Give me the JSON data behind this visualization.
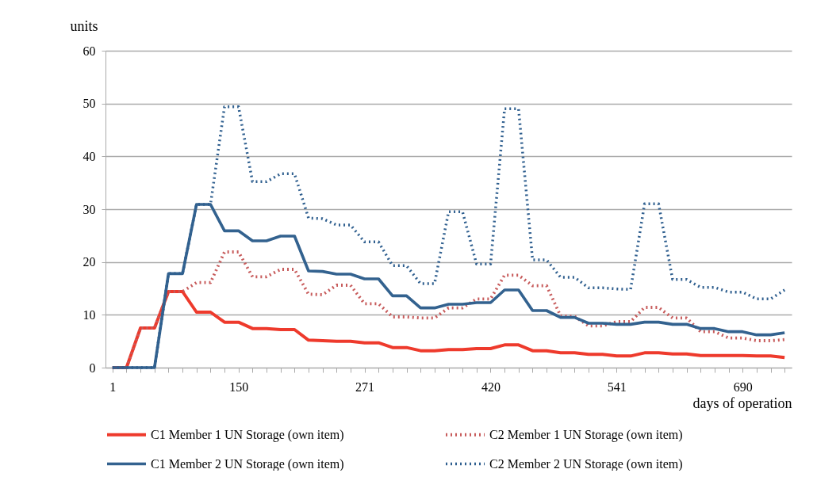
{
  "chart_data": {
    "type": "line",
    "xlabel": "days of operation",
    "ylabel": "units",
    "categories": [
      "1",
      null,
      null,
      null,
      null,
      null,
      null,
      null,
      null,
      "150",
      null,
      null,
      null,
      null,
      null,
      null,
      null,
      null,
      "271",
      null,
      null,
      null,
      null,
      null,
      null,
      null,
      null,
      "420",
      null,
      null,
      null,
      null,
      null,
      null,
      null,
      null,
      "541",
      null,
      null,
      null,
      null,
      null,
      null,
      null,
      null,
      "690",
      null,
      null,
      null
    ],
    "series": [
      {
        "name": "C1 Member 1 UN Storage (own item)",
        "color": "#ee3a2c",
        "line_style": "solid",
        "values": [
          0,
          0,
          7.5,
          7.5,
          14.4,
          14.4,
          10.5,
          10.5,
          8.6,
          8.6,
          7.4,
          7.4,
          7.2,
          7.2,
          5.2,
          5.1,
          5.0,
          5.0,
          4.7,
          4.7,
          3.8,
          3.8,
          3.2,
          3.2,
          3.4,
          3.4,
          3.6,
          3.6,
          4.3,
          4.3,
          3.2,
          3.2,
          2.8,
          2.8,
          2.5,
          2.5,
          2.2,
          2.2,
          2.8,
          2.8,
          2.6,
          2.6,
          2.3,
          2.3,
          2.3,
          2.3,
          2.2,
          2.2,
          1.9
        ]
      },
      {
        "name": "C2 Member 1 UN Storage (own item)",
        "color": "#c75b5b",
        "line_style": "dotted",
        "values": [
          0,
          0,
          7.5,
          7.5,
          14.4,
          14.4,
          16.1,
          16.1,
          21.9,
          21.9,
          17.2,
          17.2,
          18.6,
          18.6,
          13.9,
          13.8,
          15.6,
          15.6,
          12.1,
          12.1,
          9.6,
          9.6,
          9.4,
          9.4,
          11.3,
          11.3,
          13.0,
          13.0,
          17.5,
          17.5,
          15.5,
          15.5,
          9.8,
          9.7,
          7.9,
          7.9,
          8.7,
          8.7,
          11.4,
          11.4,
          9.4,
          9.4,
          6.8,
          6.8,
          5.6,
          5.6,
          5.1,
          5.1,
          5.3
        ]
      },
      {
        "name": "C1 Member 2 UN Storage (own item)",
        "color": "#33628f",
        "line_style": "solid",
        "values": [
          0,
          0,
          0,
          0,
          17.8,
          17.8,
          30.9,
          30.9,
          25.9,
          25.9,
          24.0,
          24.0,
          24.9,
          24.9,
          18.3,
          18.2,
          17.7,
          17.7,
          16.8,
          16.8,
          13.6,
          13.6,
          11.3,
          11.3,
          12.0,
          12.0,
          12.3,
          12.3,
          14.7,
          14.7,
          10.8,
          10.8,
          9.5,
          9.5,
          8.4,
          8.4,
          8.2,
          8.2,
          8.6,
          8.6,
          8.2,
          8.2,
          7.4,
          7.4,
          6.8,
          6.8,
          6.2,
          6.2,
          6.6
        ]
      },
      {
        "name": "C2 Member 2 UN Storage (own item)",
        "color": "#2f5f8f",
        "line_style": "dotted",
        "values": [
          0,
          0,
          0,
          0,
          17.8,
          17.8,
          30.9,
          30.9,
          49.4,
          49.4,
          35.2,
          35.2,
          36.7,
          36.7,
          28.3,
          28.2,
          27.0,
          27.0,
          23.8,
          23.8,
          19.3,
          19.3,
          15.9,
          15.9,
          29.5,
          29.5,
          19.6,
          19.6,
          49.0,
          49.0,
          20.4,
          20.4,
          17.1,
          17.1,
          15.1,
          15.1,
          14.9,
          14.8,
          31.0,
          31.0,
          16.7,
          16.7,
          15.2,
          15.2,
          14.3,
          14.3,
          13.0,
          13.0,
          14.7
        ]
      }
    ],
    "ylim": [
      0,
      60
    ],
    "yticks": [
      0,
      10,
      20,
      30,
      40,
      50,
      60
    ],
    "grid": "y",
    "legend": "bottom"
  }
}
